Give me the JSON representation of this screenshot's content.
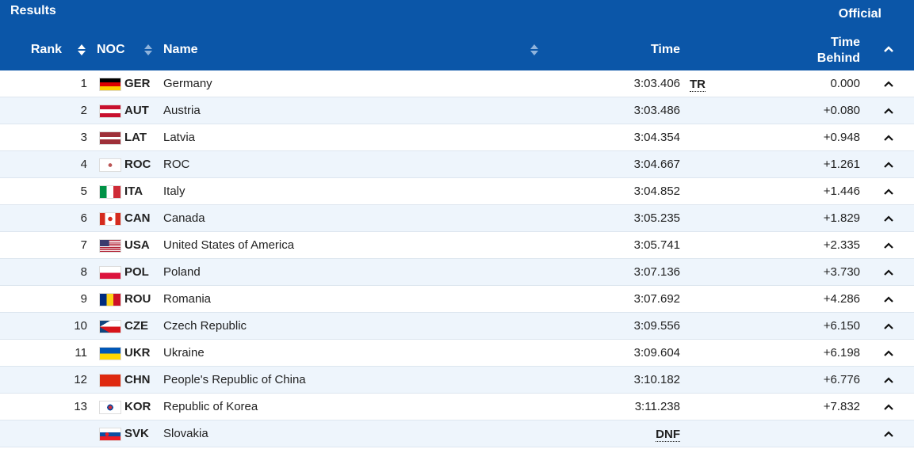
{
  "header": {
    "title": "Results",
    "status": "Official"
  },
  "columns": {
    "rank": "Rank",
    "noc": "NOC",
    "name": "Name",
    "time": "Time",
    "behind": "Time Behind"
  },
  "rows": [
    {
      "rank": "1",
      "noc": "GER",
      "name": "Germany",
      "time": "3:03.406",
      "note": "TR",
      "behind": "0.000"
    },
    {
      "rank": "2",
      "noc": "AUT",
      "name": "Austria",
      "time": "3:03.486",
      "behind": "+0.080"
    },
    {
      "rank": "3",
      "noc": "LAT",
      "name": "Latvia",
      "time": "3:04.354",
      "behind": "+0.948"
    },
    {
      "rank": "4",
      "noc": "ROC",
      "name": "ROC",
      "time": "3:04.667",
      "behind": "+1.261"
    },
    {
      "rank": "5",
      "noc": "ITA",
      "name": "Italy",
      "time": "3:04.852",
      "behind": "+1.446"
    },
    {
      "rank": "6",
      "noc": "CAN",
      "name": "Canada",
      "time": "3:05.235",
      "behind": "+1.829"
    },
    {
      "rank": "7",
      "noc": "USA",
      "name": "United States of America",
      "time": "3:05.741",
      "behind": "+2.335"
    },
    {
      "rank": "8",
      "noc": "POL",
      "name": "Poland",
      "time": "3:07.136",
      "behind": "+3.730"
    },
    {
      "rank": "9",
      "noc": "ROU",
      "name": "Romania",
      "time": "3:07.692",
      "behind": "+4.286"
    },
    {
      "rank": "10",
      "noc": "CZE",
      "name": "Czech Republic",
      "time": "3:09.556",
      "behind": "+6.150"
    },
    {
      "rank": "11",
      "noc": "UKR",
      "name": "Ukraine",
      "time": "3:09.604",
      "behind": "+6.198"
    },
    {
      "rank": "12",
      "noc": "CHN",
      "name": "People's Republic of China",
      "time": "3:10.182",
      "behind": "+6.776"
    },
    {
      "rank": "13",
      "noc": "KOR",
      "name": "Republic of Korea",
      "time": "3:11.238",
      "behind": "+7.832"
    },
    {
      "noc": "SVK",
      "name": "Slovakia",
      "time": "DNF"
    }
  ]
}
